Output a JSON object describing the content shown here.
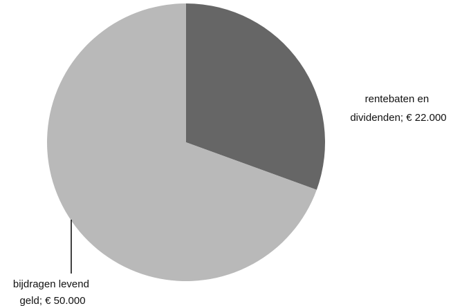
{
  "chart_data": {
    "type": "pie",
    "categories": [
      "rentebaten en dividenden",
      "bijdragen levend geld"
    ],
    "values": [
      22000,
      50000
    ],
    "colors": [
      "#666666",
      "#b9b9b9"
    ],
    "start_angle_deg": 0,
    "direction": "clockwise",
    "legend": "none",
    "labels": [
      {
        "line1": "rentebaten en",
        "line2": "dividenden;  € 22.000"
      },
      {
        "line1": "bijdragen levend",
        "line2": "geld;  € 50.000"
      }
    ]
  }
}
